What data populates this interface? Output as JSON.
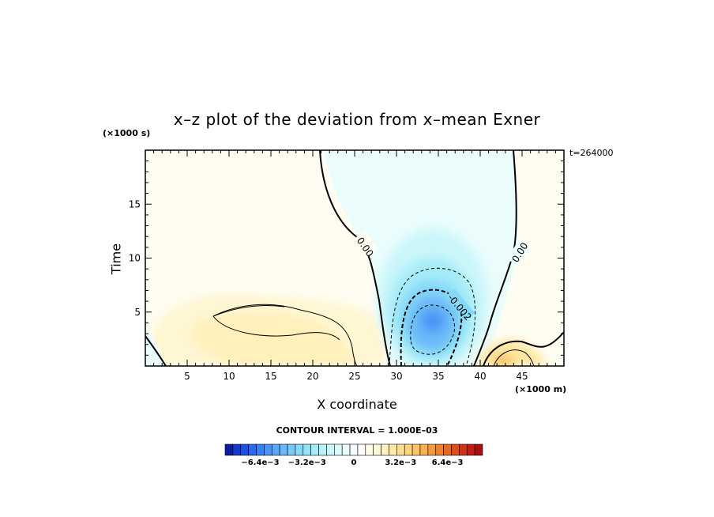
{
  "chart_data": {
    "type": "contour",
    "title": "x–z plot of the deviation from x–mean Exner",
    "xlabel": "X coordinate",
    "ylabel": "Time",
    "x_unit": "(×1000 m)",
    "y_unit": "(×1000 s)",
    "timestamp": "t=264000",
    "xlim": [
      0,
      50
    ],
    "ylim": [
      0,
      20
    ],
    "x_ticks": [
      5,
      10,
      15,
      20,
      25,
      30,
      35,
      40,
      45
    ],
    "y_ticks": [
      5,
      10,
      15
    ],
    "contour_interval_text": "CONTOUR INTERVAL = 1.000E–03",
    "contour_labels": [
      {
        "text": "0.00",
        "x": 26.2,
        "y": 11.0
      },
      {
        "text": "0.00",
        "x": 44.8,
        "y": 10.5
      },
      {
        "text": "-0.002",
        "x": 37.5,
        "y": 5.4
      }
    ],
    "features": [
      {
        "kind": "negative-minimum",
        "x": 34.5,
        "y": 4.2,
        "value_approx": -0.004
      },
      {
        "kind": "positive-region",
        "x": 14.0,
        "y": 4.5,
        "value_approx": 0.001
      },
      {
        "kind": "positive-region",
        "x": 43.0,
        "y": 1.0,
        "value_approx": 0.002
      }
    ],
    "colorbar": {
      "min": -0.0088,
      "max": 0.0088,
      "tick_labels": [
        "−6.4e−3",
        "−3.2e−3",
        "0",
        "3.2e−3",
        "6.4e−3"
      ],
      "tick_values": [
        -0.0064,
        -0.0032,
        0,
        0.0032,
        0.0064
      ],
      "colors": [
        "#0a1ea0",
        "#1438c8",
        "#1e50e6",
        "#2a68f0",
        "#3a80f4",
        "#4a94f6",
        "#58a8f8",
        "#6ab8f8",
        "#78c8f8",
        "#86d8f8",
        "#94e2f8",
        "#a6ecf8",
        "#b8f2f8",
        "#caf6fa",
        "#dcfafa",
        "#eafcfc",
        "#f6fefe",
        "#fefefa",
        "#fffcea",
        "#fff8d6",
        "#fff2c0",
        "#ffeaa8",
        "#ffe092",
        "#fed47c",
        "#fcc466",
        "#f8b050",
        "#f49a3e",
        "#ee8230",
        "#e66826",
        "#dc4e1e",
        "#d03418",
        "#c01e14",
        "#a81010"
      ]
    }
  }
}
